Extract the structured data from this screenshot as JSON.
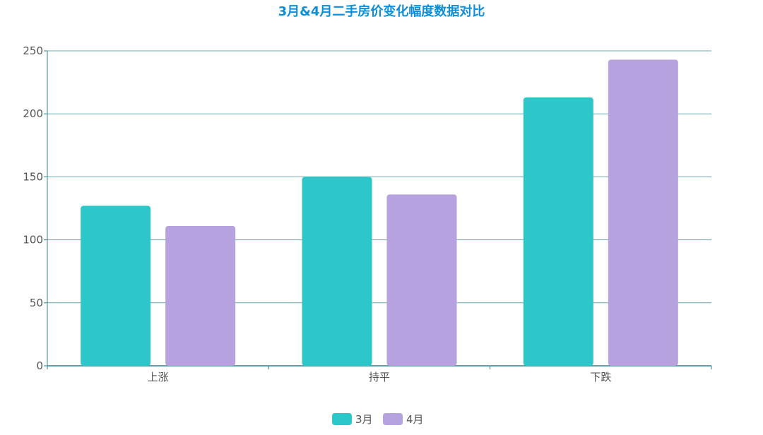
{
  "chart_data": {
    "type": "bar",
    "title": "3月&4月二手房价变化幅度数据对比",
    "categories": [
      "上涨",
      "持平",
      "下跌"
    ],
    "series": [
      {
        "name": "3月",
        "values": [
          127,
          150,
          213
        ],
        "color": "#2ec7c9"
      },
      {
        "name": "4月",
        "values": [
          111,
          136,
          243
        ],
        "color": "#b6a2de"
      }
    ],
    "ylim": [
      0,
      250
    ],
    "y_ticks": [
      0,
      50,
      100,
      150,
      200,
      250
    ],
    "grid": true,
    "legend_position": "bottom-center",
    "title_color": "#0e8ed7",
    "axis_color": "#2f7f8f",
    "grid_color": "#6ea7ad"
  }
}
